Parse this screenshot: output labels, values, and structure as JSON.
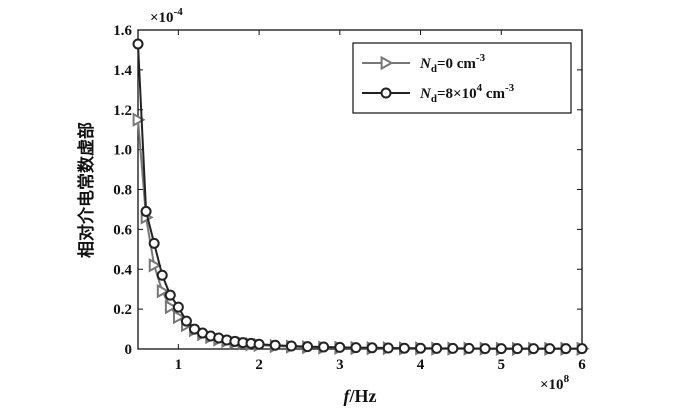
{
  "chart_data": {
    "type": "line",
    "xlabel": {
      "italic": "f",
      "rest": "/Hz"
    },
    "ylabel": "相对介电常数虚部",
    "x_scale_label": {
      "base": "×10",
      "exp": "8"
    },
    "y_scale_label": {
      "base": "×10",
      "exp": "-4"
    },
    "xlim": [
      0.5,
      6
    ],
    "ylim": [
      0,
      1.6
    ],
    "x_ticks": [
      "1",
      "2",
      "3",
      "4",
      "5",
      "6"
    ],
    "y_ticks": [
      "0",
      "0.2",
      "0.4",
      "0.6",
      "0.8",
      "1.0",
      "1.2",
      "1.4",
      "1.6"
    ],
    "legend_position": "top-right",
    "series": [
      {
        "legend": {
          "sym": "N",
          "sub": "d",
          "rest": "=0 cm",
          "sup": "-3"
        },
        "color": "#777777",
        "marker": "triangle-right",
        "x": [
          0.5,
          0.6,
          0.7,
          0.8,
          0.9,
          1.0,
          1.1,
          1.2,
          1.3,
          1.4,
          1.5,
          1.6,
          1.7,
          1.8,
          1.9,
          2.0,
          2.2,
          2.4,
          2.6,
          2.8,
          3.0,
          3.2,
          3.4,
          3.6,
          3.8,
          4.0,
          4.2,
          4.4,
          4.6,
          4.8,
          5.0,
          5.2,
          5.4,
          5.6,
          5.8,
          6.0
        ],
        "y": [
          1.15,
          0.66,
          0.42,
          0.29,
          0.21,
          0.16,
          0.12,
          0.095,
          0.075,
          0.06,
          0.048,
          0.04,
          0.033,
          0.028,
          0.024,
          0.02,
          0.015,
          0.012,
          0.009,
          0.007,
          0.006,
          0.005,
          0.004,
          0.004,
          0.003,
          0.003,
          0.002,
          0.002,
          0.002,
          0.002,
          0.001,
          0.001,
          0.001,
          0.001,
          0.001,
          0.001
        ]
      },
      {
        "legend": {
          "sym": "N",
          "sub": "d",
          "rest": "=8×10",
          "sup2": "4",
          "rest2": " cm",
          "sup": "-3"
        },
        "color": "#222222",
        "marker": "circle",
        "x": [
          0.5,
          0.6,
          0.7,
          0.8,
          0.9,
          1.0,
          1.1,
          1.2,
          1.3,
          1.4,
          1.5,
          1.6,
          1.7,
          1.8,
          1.9,
          2.0,
          2.2,
          2.4,
          2.6,
          2.8,
          3.0,
          3.2,
          3.4,
          3.6,
          3.8,
          4.0,
          4.2,
          4.4,
          4.6,
          4.8,
          5.0,
          5.2,
          5.4,
          5.6,
          5.8,
          6.0
        ],
        "y": [
          1.53,
          0.69,
          0.53,
          0.37,
          0.27,
          0.21,
          0.14,
          0.1,
          0.08,
          0.065,
          0.055,
          0.045,
          0.038,
          0.032,
          0.028,
          0.024,
          0.019,
          0.015,
          0.012,
          0.01,
          0.008,
          0.007,
          0.006,
          0.005,
          0.004,
          0.004,
          0.003,
          0.003,
          0.003,
          0.002,
          0.002,
          0.002,
          0.002,
          0.002,
          0.002,
          0.002
        ]
      }
    ]
  }
}
